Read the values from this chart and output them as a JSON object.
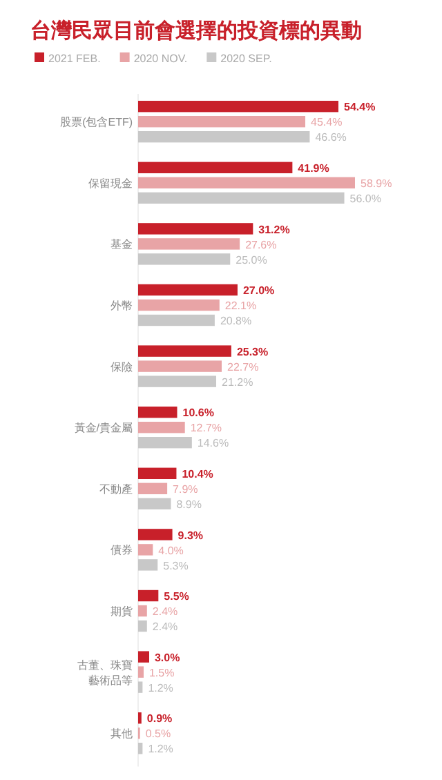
{
  "chart_data": {
    "type": "bar",
    "orientation": "horizontal",
    "title": "台灣民眾目前會選擇的投資標的異動",
    "categories": [
      "股票(包含ETF)",
      "保留現金",
      "基金",
      "外幣",
      "保險",
      "黃金/貴金屬",
      "不動產",
      "債券",
      "期貨",
      "古董、珠寶藝術品等",
      "其他"
    ],
    "series": [
      {
        "name": "2021 FEB.",
        "color": "#c8202a",
        "values": [
          54.4,
          41.9,
          31.2,
          27.0,
          25.3,
          10.6,
          10.4,
          9.3,
          5.5,
          3.0,
          0.9
        ],
        "value_labels": [
          "54.4%",
          "41.9%",
          "31.2%",
          "27.0%",
          "25.3%",
          "10.6%",
          "10.4%",
          "9.3%",
          "5.5%",
          "3.0%",
          "0.9%"
        ]
      },
      {
        "name": "2020 NOV.",
        "color": "#e8a4a6",
        "values": [
          45.4,
          58.9,
          27.6,
          22.1,
          22.7,
          12.7,
          7.9,
          4.0,
          2.4,
          1.5,
          0.5
        ],
        "value_labels": [
          "45.4%",
          "58.9%",
          "27.6%",
          "22.1%",
          "22.7%",
          "12.7%",
          "7.9%",
          "4.0%",
          "2.4%",
          "1.5%",
          "0.5%"
        ]
      },
      {
        "name": "2020 SEP.",
        "color": "#c8c8c8",
        "values": [
          46.6,
          56.0,
          25.0,
          20.8,
          21.2,
          14.6,
          8.9,
          5.3,
          2.4,
          1.2,
          1.2
        ],
        "value_labels": [
          "46.6%",
          "56.0%",
          "25.0%",
          "20.8%",
          "21.2%",
          "14.6%",
          "8.9%",
          "5.3%",
          "2.4%",
          "1.2%",
          "1.2%"
        ]
      }
    ],
    "tick_labels": "y",
    "legend": "top left"
  }
}
